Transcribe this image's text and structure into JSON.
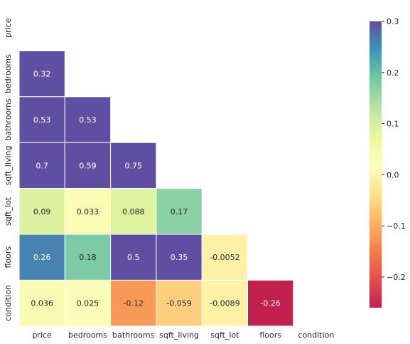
{
  "chart_data": {
    "type": "heatmap",
    "variables": [
      "price",
      "bedrooms",
      "bathrooms",
      "sqft_living",
      "sqft_lot",
      "floors",
      "condition"
    ],
    "matrix_lower": [
      [],
      [
        "0.32"
      ],
      [
        "0.53",
        "0.53"
      ],
      [
        "0.7",
        "0.59",
        "0.75"
      ],
      [
        "0.09",
        "0.033",
        "0.088",
        "0.17"
      ],
      [
        "0.26",
        "0.18",
        "0.5",
        "0.35",
        "-0.0052"
      ],
      [
        "0.036",
        "0.025",
        "-0.12",
        "-0.059",
        "-0.0089",
        "-0.26"
      ]
    ],
    "mask": "upper triangle including diagonal",
    "colormap": "Spectral",
    "color_range": [
      -0.26,
      0.3
    ],
    "colorbar_ticks": [
      "0.3",
      "0.2",
      "0.1",
      "0.0",
      "−0.1",
      "−0.2"
    ],
    "colorbar_tick_values": [
      0.3,
      0.2,
      0.1,
      0.0,
      -0.1,
      -0.2
    ],
    "cell_border_color": "#ffffff",
    "title": "",
    "xlabel": "",
    "ylabel": ""
  }
}
